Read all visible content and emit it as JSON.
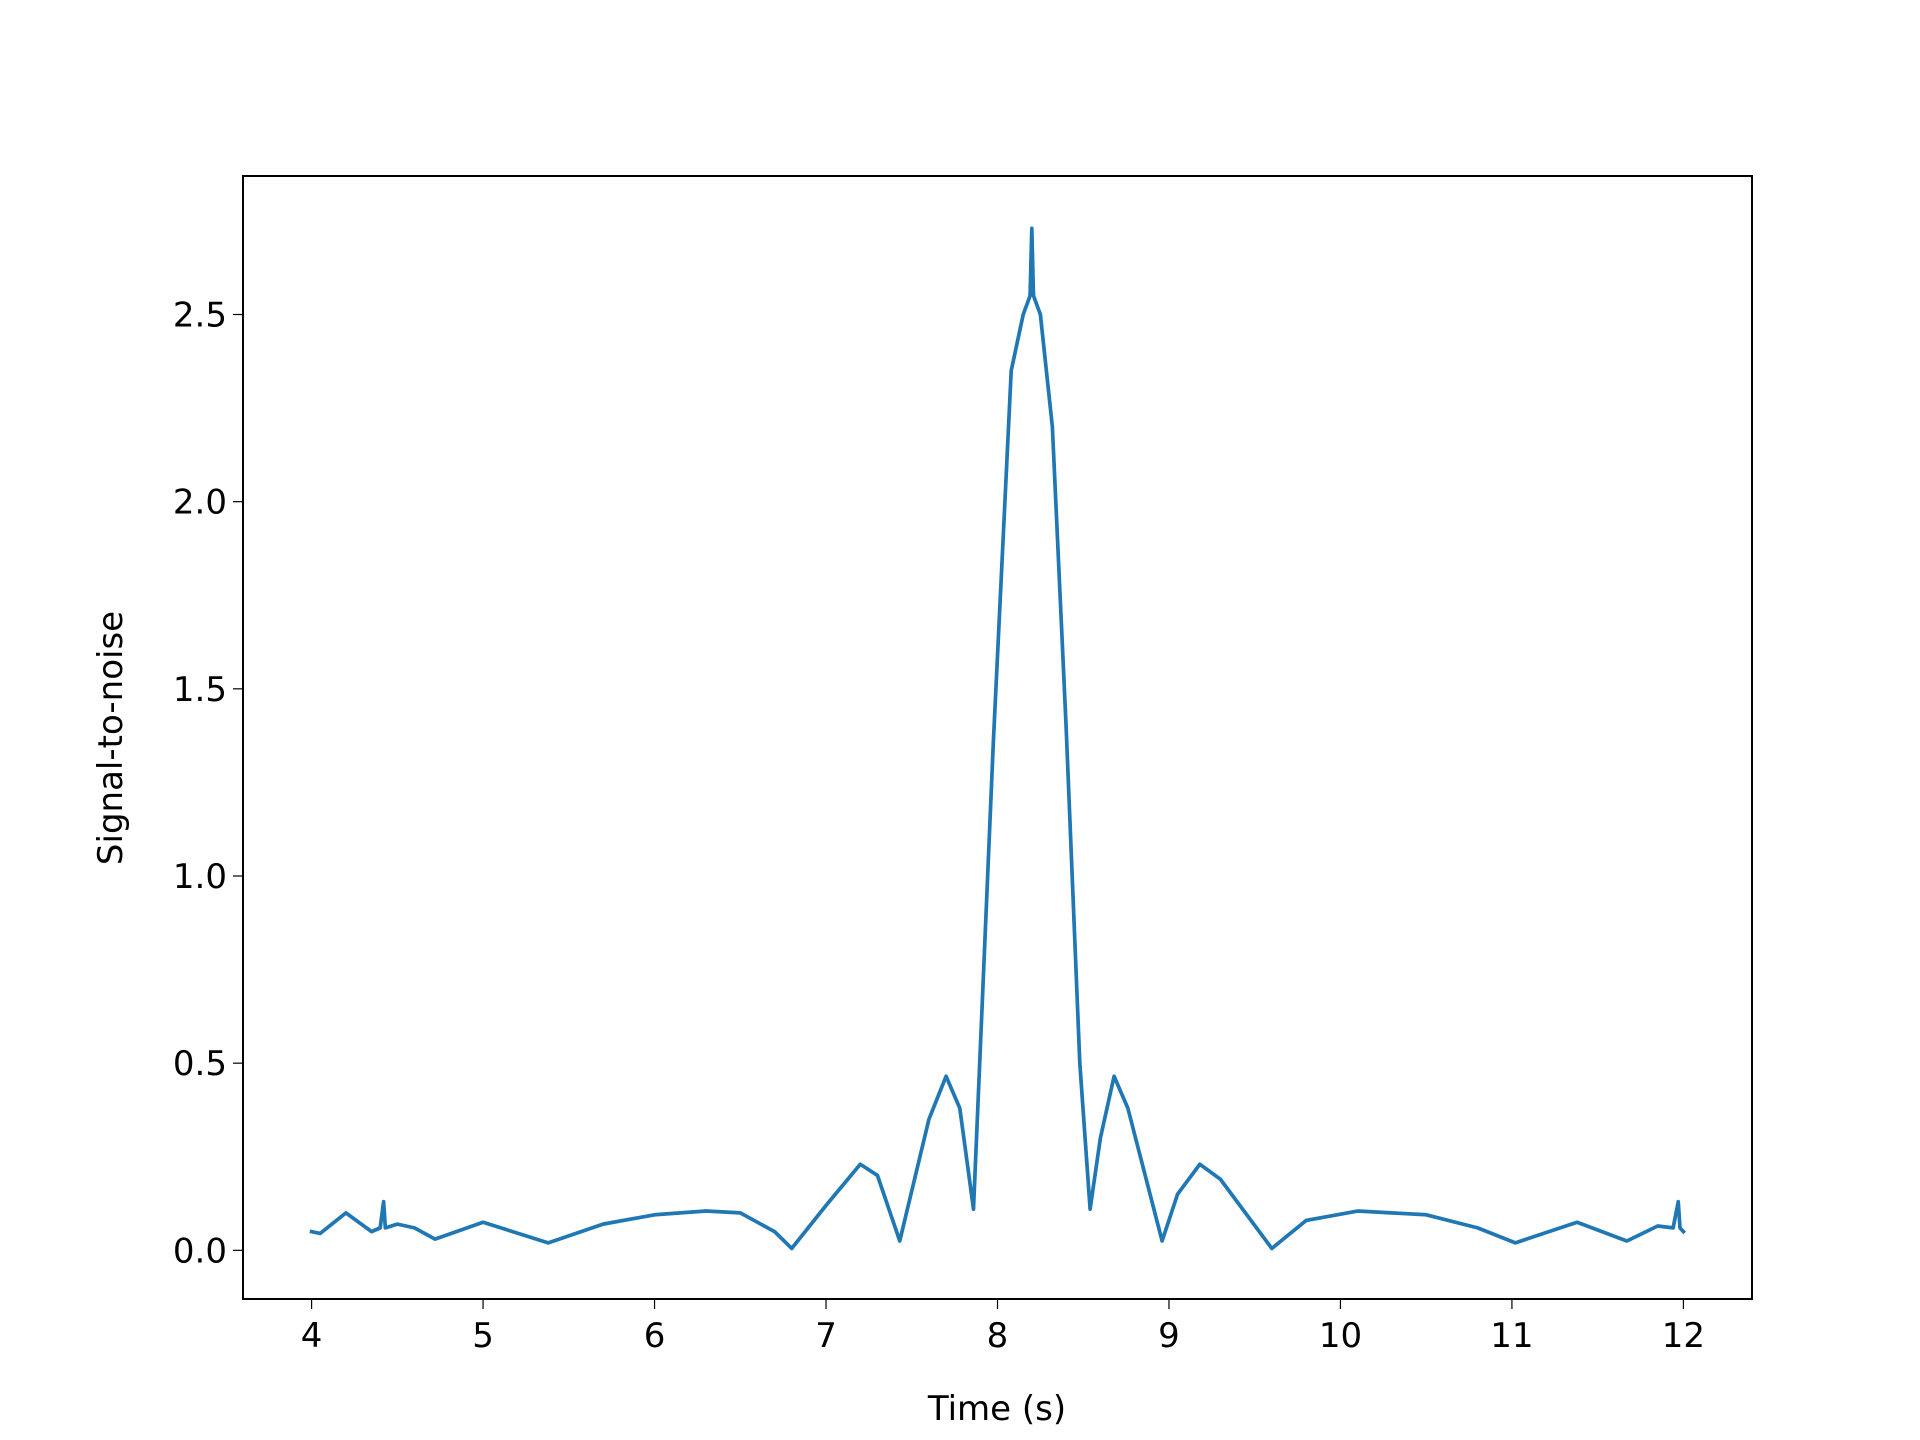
{
  "chart_data": {
    "type": "line",
    "xlabel": "Time (s)",
    "ylabel": "Signal-to-noise",
    "color": "#1f77b4",
    "x": [
      4.0,
      4.05,
      4.2,
      4.35,
      4.4,
      4.42,
      4.43,
      4.5,
      4.6,
      4.72,
      5.0,
      5.38,
      5.7,
      6.0,
      6.3,
      6.5,
      6.7,
      6.8,
      7.0,
      7.2,
      7.3,
      7.43,
      7.6,
      7.7,
      7.78,
      7.86,
      7.975,
      8.08,
      8.15,
      8.19,
      8.2,
      8.21,
      8.25,
      8.32,
      8.4,
      8.48,
      8.54,
      8.6,
      8.68,
      8.76,
      8.96,
      9.05,
      9.18,
      9.3,
      9.6,
      9.8,
      10.1,
      10.5,
      10.8,
      11.02,
      11.38,
      11.67,
      11.85,
      11.94,
      11.97,
      11.98,
      12.0
    ],
    "values": [
      0.05,
      0.045,
      0.1,
      0.05,
      0.06,
      0.13,
      0.06,
      0.07,
      0.06,
      0.03,
      0.075,
      0.02,
      0.07,
      0.095,
      0.105,
      0.1,
      0.05,
      0.005,
      0.12,
      0.23,
      0.2,
      0.025,
      0.35,
      0.465,
      0.38,
      0.11,
      1.35,
      2.35,
      2.5,
      2.55,
      2.73,
      2.55,
      2.5,
      2.2,
      1.4,
      0.5,
      0.11,
      0.3,
      0.465,
      0.38,
      0.025,
      0.15,
      0.23,
      0.19,
      0.005,
      0.08,
      0.105,
      0.095,
      0.06,
      0.02,
      0.075,
      0.025,
      0.065,
      0.06,
      0.13,
      0.06,
      0.05
    ],
    "xlim": [
      3.6,
      12.4
    ],
    "xticks": [
      4,
      5,
      6,
      7,
      8,
      9,
      10,
      11,
      12
    ],
    "ylim": [
      -0.13,
      2.87
    ],
    "yticks": [
      {
        "value": 0,
        "label": "0.0"
      },
      0.5,
      {
        "value": 1,
        "label": "1.0"
      },
      1.5,
      {
        "value": 2,
        "label": "2.0"
      },
      2.5
    ]
  }
}
